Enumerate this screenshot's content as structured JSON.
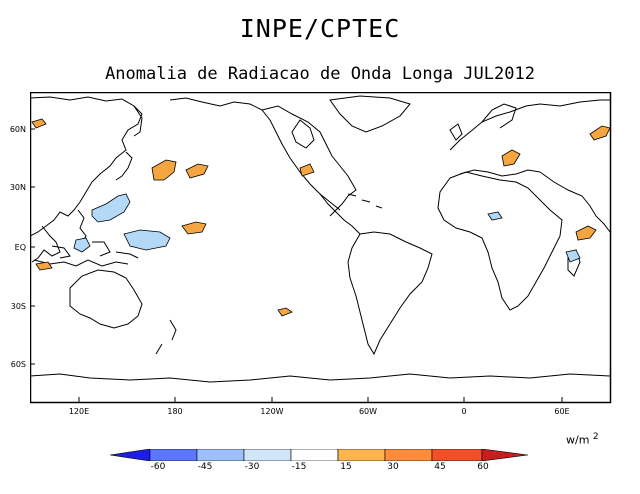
{
  "titles": {
    "main": "INPE/CPTEC",
    "sub": "Anomalia de Radiacao de Onda Longa JUL2012"
  },
  "axes": {
    "lat_labels": [
      "60N",
      "30N",
      "EQ",
      "30S",
      "60S"
    ],
    "lon_labels": [
      "120E",
      "180",
      "120W",
      "60W",
      "0",
      "60E"
    ]
  },
  "legend": {
    "units": "w/m",
    "units_exp": "2",
    "labels": [
      "-60",
      "-45",
      "-30",
      "-15",
      "15",
      "30",
      "45",
      "60"
    ],
    "colors": [
      "#1e1ee6",
      "#5a78ff",
      "#9ec0ff",
      "#d2e6fa",
      "#ffffff",
      "#ffb450",
      "#ff8c3c",
      "#f05028",
      "#c81e1e"
    ]
  },
  "colors": {
    "positive": "#f5a640",
    "negative": "#b4d8f8",
    "coast": "#000000"
  }
}
